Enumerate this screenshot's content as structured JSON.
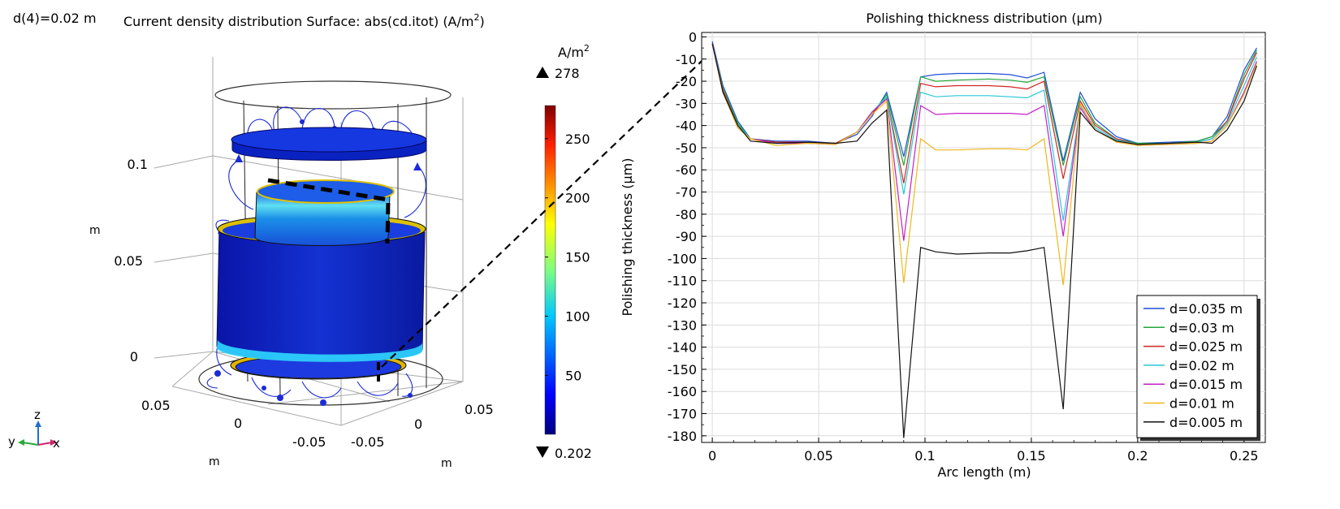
{
  "left": {
    "param_label": "d(4)=0.02 m",
    "title_main": "Current density distribution Surface: abs(cd.itot) (A/m",
    "title_sup": "2",
    "title_close": ")",
    "z_ticks": [
      "0.1",
      "0.05",
      "0"
    ],
    "z_unit": "m",
    "y_ticks": [
      "0.05",
      "0",
      "-0.05"
    ],
    "x_ticks": [
      "-0.05",
      "0",
      "0.05"
    ],
    "axis_unit_left": "m",
    "axis_unit_right": "m",
    "triad": {
      "z": "z",
      "y": "y",
      "x": "x"
    },
    "colorbar": {
      "unit_main": "A/m",
      "unit_sup": "2",
      "max_label": "278",
      "min_label": "0.202",
      "ticks": [
        "250",
        "200",
        "150",
        "100",
        "50"
      ],
      "tick_values": [
        250,
        200,
        150,
        100,
        50
      ],
      "range": [
        0.202,
        278
      ]
    }
  },
  "chart_data": {
    "type": "line",
    "title": "Polishing thickness distribution (µm)",
    "xlabel": "Arc length (m)",
    "ylabel": "Polishing thickness (µm)",
    "xlim": [
      -0.005,
      0.26
    ],
    "ylim": [
      -183,
      2
    ],
    "x_ticks": [
      0,
      0.05,
      0.1,
      0.15,
      0.2,
      0.25
    ],
    "x_tick_labels": [
      "0",
      "0.05",
      "0.1",
      "0.15",
      "0.2",
      "0.25"
    ],
    "y_ticks": [
      0,
      -10,
      -20,
      -30,
      -40,
      -50,
      -60,
      -70,
      -80,
      -90,
      -100,
      -110,
      -120,
      -130,
      -140,
      -150,
      -160,
      -170,
      -180
    ],
    "y_tick_labels": [
      "0",
      "-10",
      "-20",
      "-30",
      "-40",
      "-50",
      "-60",
      "-70",
      "-80",
      "-90",
      "-100",
      "-110",
      "-120",
      "-130",
      "-140",
      "-150",
      "-160",
      "-170",
      "-180"
    ],
    "grid": true,
    "legend_position": "bottom-right",
    "x": [
      0,
      0.005,
      0.012,
      0.018,
      0.03,
      0.045,
      0.058,
      0.068,
      0.075,
      0.082,
      0.09,
      0.098,
      0.105,
      0.115,
      0.13,
      0.14,
      0.148,
      0.156,
      0.165,
      0.173,
      0.18,
      0.19,
      0.2,
      0.215,
      0.228,
      0.235,
      0.242,
      0.25,
      0.256
    ],
    "series": [
      {
        "name": "d=0.035 m",
        "color": "#1f4fd8",
        "values": [
          -2,
          -22,
          -38,
          -46,
          -47,
          -47,
          -48,
          -44,
          -36,
          -25,
          -54,
          -18,
          -17,
          -16.5,
          -16.5,
          -17,
          -18.5,
          -16,
          -56,
          -25,
          -37,
          -45,
          -48,
          -47.5,
          -47,
          -45,
          -36,
          -15,
          -5
        ]
      },
      {
        "name": "d=0.03 m",
        "color": "#22a83a",
        "values": [
          -3,
          -23,
          -39,
          -46,
          -47.5,
          -47.5,
          -48,
          -43,
          -35,
          -26,
          -58,
          -18,
          -20,
          -19.5,
          -19,
          -19.5,
          -20.5,
          -18,
          -58,
          -27,
          -39,
          -46,
          -48,
          -48,
          -47,
          -45,
          -38,
          -17,
          -6
        ]
      },
      {
        "name": "d=0.025 m",
        "color": "#d02424",
        "values": [
          -3,
          -24,
          -40,
          -46,
          -47.5,
          -47.5,
          -48,
          -43,
          -35,
          -27,
          -66,
          -21,
          -22.5,
          -22,
          -22,
          -22.5,
          -23.5,
          -20,
          -64,
          -29,
          -40,
          -46,
          -48.5,
          -48,
          -47.5,
          -46,
          -38,
          -19,
          -7
        ]
      },
      {
        "name": "d=0.02 m",
        "color": "#28c8d8",
        "values": [
          -3,
          -25,
          -40,
          -46,
          -48,
          -48,
          -48.5,
          -43,
          -34,
          -27,
          -71,
          -25,
          -27,
          -26.5,
          -26.5,
          -27,
          -27.5,
          -24,
          -83,
          -31,
          -41,
          -46.5,
          -48.5,
          -48,
          -47.5,
          -46,
          -39,
          -22,
          -9
        ]
      },
      {
        "name": "d=0.015 m",
        "color": "#c41fc4",
        "values": [
          -3,
          -25,
          -41,
          -46,
          -48,
          -48,
          -48.5,
          -43,
          -34,
          -28,
          -92,
          -31,
          -35,
          -34.5,
          -34.5,
          -34.5,
          -35,
          -31,
          -90,
          -32,
          -42,
          -47,
          -49,
          -48.5,
          -48,
          -47,
          -40,
          -25,
          -11
        ]
      },
      {
        "name": "d=0.01 m",
        "color": "#f0b81c",
        "values": [
          -3,
          -25,
          -41,
          -46,
          -49,
          -48,
          -48.5,
          -43,
          -35,
          -29,
          -111,
          -46,
          -51,
          -51,
          -50.5,
          -50.5,
          -51,
          -46,
          -112,
          -30,
          -42,
          -47.5,
          -49,
          -48.5,
          -48,
          -47,
          -40,
          -26,
          -12
        ]
      },
      {
        "name": "d=0.005 m",
        "color": "#111111",
        "values": [
          -3,
          -25,
          -40,
          -47,
          -48,
          -47.5,
          -48,
          -47,
          -39,
          -33,
          -181,
          -95,
          -97,
          -98,
          -97.5,
          -97.5,
          -96.5,
          -95,
          -168,
          -34,
          -42,
          -47,
          -48.5,
          -48,
          -47.5,
          -48,
          -42,
          -29,
          -13
        ]
      }
    ]
  }
}
